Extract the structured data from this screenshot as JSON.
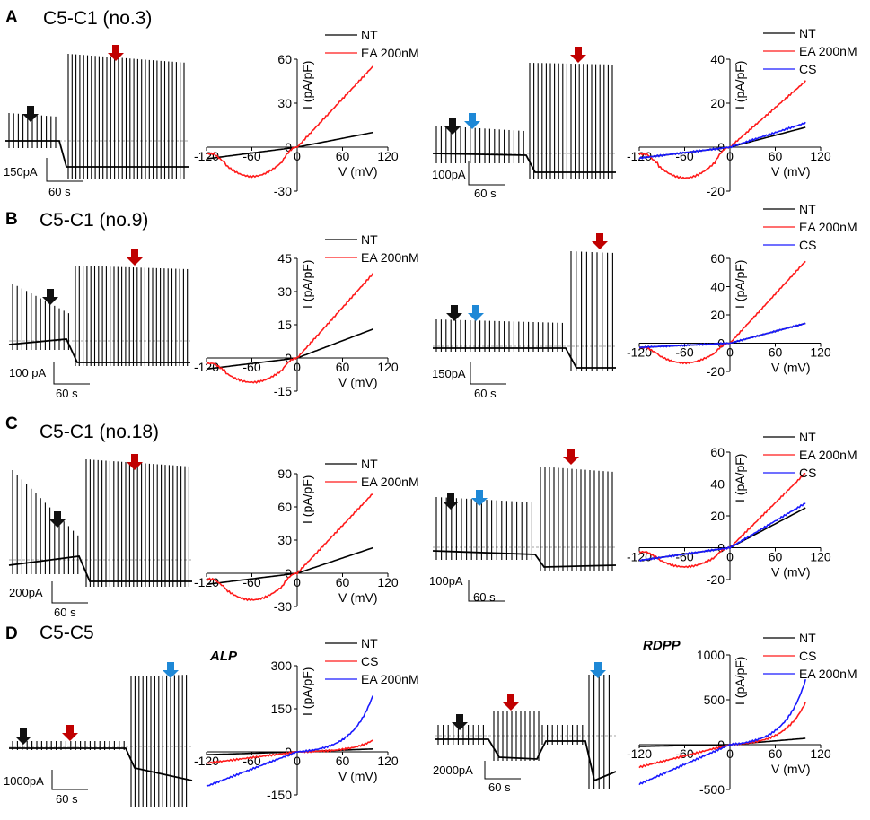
{
  "figure": {
    "panels": [
      {
        "letter": "A",
        "title": "C5-C1 (no.3)"
      },
      {
        "letter": "B",
        "title": "C5-C1 (no.9)"
      },
      {
        "letter": "C",
        "title": "C5-C1 (no.18)"
      },
      {
        "letter": "D",
        "title": "C5-C5"
      }
    ],
    "scale_bars": [
      {
        "current": "150pA",
        "time": "60 s"
      },
      {
        "current": "100pA",
        "time": "60 s"
      },
      {
        "current": "100 pA",
        "time": "60 s"
      },
      {
        "current": "150pA",
        "time": "60 s"
      },
      {
        "current": "200pA",
        "time": "60 s"
      },
      {
        "current": "100pA",
        "time": "60 s"
      },
      {
        "current": "1000pA",
        "time": "60 s"
      },
      {
        "current": "2000pA",
        "time": "60 s"
      }
    ],
    "marker_colors": {
      "black": "#111111",
      "red": "#c00000",
      "blue": "#1e88d6"
    },
    "trace_colors": {
      "NT": "#000000",
      "EA": "#ff1a1a",
      "CS_blue": "#1a1aff",
      "CS_red": "#ff1a1a",
      "EA_blue": "#1a1aff"
    }
  },
  "chart_data": [
    {
      "type": "line",
      "panel": "A-left",
      "title": "",
      "xlabel": "V (mV)",
      "ylabel": "I (pA/pF)",
      "xlim": [
        -120,
        120
      ],
      "ylim": [
        -30,
        60
      ],
      "xticks": [
        "-120",
        "-60",
        "0",
        "60",
        "120"
      ],
      "yticks": [
        "-30",
        "0",
        "30",
        "60"
      ],
      "series": [
        {
          "name": "NT",
          "end": 10,
          "min": -8
        },
        {
          "name": "EA 200nM",
          "end": 55,
          "min": -20
        }
      ]
    },
    {
      "type": "line",
      "panel": "A-right",
      "title": "",
      "xlabel": "V (mV)",
      "ylabel": "I (pA/pF)",
      "xlim": [
        -120,
        120
      ],
      "ylim": [
        -20,
        40
      ],
      "xticks": [
        "-120",
        "-60",
        "0",
        "60",
        "120"
      ],
      "yticks": [
        "-20",
        "0",
        "20",
        "40"
      ],
      "series": [
        {
          "name": "NT",
          "end": 9,
          "min": -5
        },
        {
          "name": "EA 200nM",
          "end": 30,
          "min": -14
        },
        {
          "name": "CS",
          "end": 11,
          "min": -5
        }
      ]
    },
    {
      "type": "line",
      "panel": "B-left",
      "title": "",
      "xlabel": "V (mV)",
      "ylabel": "I (pA/pF)",
      "xlim": [
        -120,
        120
      ],
      "ylim": [
        -15,
        45
      ],
      "xticks": [
        "-120",
        "-60",
        "0",
        "60",
        "120"
      ],
      "yticks": [
        "-15",
        "0",
        "15",
        "30",
        "45"
      ],
      "series": [
        {
          "name": "NT",
          "end": 13,
          "min": -5
        },
        {
          "name": "EA 200nM",
          "end": 38,
          "min": -11
        }
      ]
    },
    {
      "type": "line",
      "panel": "B-right",
      "title": "",
      "xlabel": "V (mV)",
      "ylabel": "I (pA/pF)",
      "xlim": [
        -120,
        120
      ],
      "ylim": [
        -20,
        60
      ],
      "xticks": [
        "-120",
        "-60",
        "0",
        "60",
        "120"
      ],
      "yticks": [
        "-20",
        "0",
        "20",
        "40",
        "60"
      ],
      "series": [
        {
          "name": "NT",
          "end": 14,
          "min": -3
        },
        {
          "name": "EA 200nM",
          "end": 58,
          "min": -14
        },
        {
          "name": "CS",
          "end": 14,
          "min": -3
        }
      ]
    },
    {
      "type": "line",
      "panel": "C-left",
      "title": "",
      "xlabel": "V (mV)",
      "ylabel": "I (pA/pF)",
      "xlim": [
        -120,
        120
      ],
      "ylim": [
        -30,
        90
      ],
      "xticks": [
        "-120",
        "-60",
        "0",
        "60",
        "120"
      ],
      "yticks": [
        "-30",
        "0",
        "30",
        "60",
        "90"
      ],
      "series": [
        {
          "name": "NT",
          "end": 23,
          "min": -10
        },
        {
          "name": "EA 200nM",
          "end": 72,
          "min": -24
        }
      ]
    },
    {
      "type": "line",
      "panel": "C-right",
      "title": "",
      "xlabel": "V (mV)",
      "ylabel": "I (pA/pF)",
      "xlim": [
        -120,
        120
      ],
      "ylim": [
        -20,
        60
      ],
      "xticks": [
        "-120",
        "-60",
        "0",
        "60",
        "120"
      ],
      "yticks": [
        "-20",
        "0",
        "20",
        "40",
        "60"
      ],
      "series": [
        {
          "name": "NT",
          "end": 25,
          "min": -8
        },
        {
          "name": "EA 200nM",
          "end": 47,
          "min": -12
        },
        {
          "name": "CS",
          "end": 28,
          "min": -8
        }
      ]
    },
    {
      "type": "line",
      "panel": "D-left",
      "title": "ALP",
      "xlabel": "V (mV)",
      "ylabel": "I (pA/pF)",
      "xlim": [
        -120,
        120
      ],
      "ylim": [
        -150,
        300
      ],
      "xticks": [
        "-120",
        "-60",
        "0",
        "60",
        "120"
      ],
      "yticks": [
        "-150",
        "0",
        "150",
        "300"
      ],
      "series": [
        {
          "name": "NT",
          "end": 10,
          "min": -10
        },
        {
          "name": "CS",
          "end": 40,
          "min": -40
        },
        {
          "name": "EA 200nM",
          "end": 195,
          "min": -120
        }
      ]
    },
    {
      "type": "line",
      "panel": "D-right",
      "title": "RDPP",
      "xlabel": "V (mV)",
      "ylabel": "I (pA/pF)",
      "xlim": [
        -120,
        120
      ],
      "ylim": [
        -500,
        1000
      ],
      "xticks": [
        "-120",
        "-60",
        "0",
        "60",
        "120"
      ],
      "yticks": [
        "-500",
        "0",
        "500",
        "1000"
      ],
      "series": [
        {
          "name": "NT",
          "end": 70,
          "min": -20
        },
        {
          "name": "CS",
          "end": 470,
          "min": -250
        },
        {
          "name": "EA 200nM",
          "end": 720,
          "min": -440
        }
      ]
    }
  ]
}
